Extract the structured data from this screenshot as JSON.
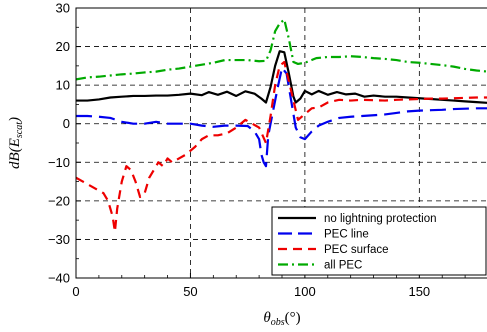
{
  "chart_data": {
    "type": "line",
    "title": "",
    "xlabel": "θ_obs(°)",
    "ylabel": "dB(E_scat)",
    "xlim": [
      0,
      180
    ],
    "ylim": [
      -40,
      30
    ],
    "xticks": [
      0,
      50,
      100,
      150
    ],
    "yticks": [
      -40,
      -30,
      -20,
      -10,
      0,
      10,
      20,
      30
    ],
    "xtick_labels": [
      "0",
      "50",
      "100",
      "150"
    ],
    "ytick_labels": [
      "−40",
      "−30",
      "−20",
      "−10",
      "0",
      "10",
      "20",
      "30"
    ],
    "grid": true,
    "grid_style": "dashed",
    "legend_position": "bottom-right",
    "series": [
      {
        "name": "no lightning protection",
        "color": "#000000",
        "dash": "solid",
        "width": 2.2,
        "x": [
          0,
          5,
          10,
          15,
          20,
          25,
          30,
          35,
          40,
          45,
          50,
          55,
          58,
          62,
          66,
          70,
          74,
          78,
          81,
          83,
          85,
          87,
          89,
          91,
          93,
          95,
          96,
          98,
          100,
          103,
          106,
          110,
          114,
          118,
          122,
          126,
          130,
          135,
          140,
          145,
          150,
          155,
          160,
          165,
          170,
          175,
          180
        ],
        "y": [
          6,
          6,
          6.3,
          6.8,
          7,
          7.2,
          7.2,
          7.3,
          7.3,
          7.5,
          7.8,
          7.4,
          8.2,
          7.5,
          8.3,
          7.2,
          8.4,
          7.8,
          6.5,
          5.5,
          9.5,
          15,
          18.8,
          18.5,
          13,
          7,
          5.5,
          6.5,
          8.5,
          7.6,
          8.5,
          7.5,
          8.2,
          7.6,
          7.8,
          7,
          7.3,
          7,
          7,
          6.8,
          6.6,
          6.4,
          6.2,
          6,
          5.8,
          5.6,
          5.4
        ]
      },
      {
        "name": "PEC line",
        "color": "#0000ee",
        "dash": "long-dash",
        "width": 2.2,
        "x": [
          0,
          5,
          10,
          15,
          20,
          25,
          30,
          35,
          40,
          45,
          50,
          55,
          60,
          65,
          70,
          75,
          78,
          80,
          81,
          82,
          83,
          84,
          86,
          88,
          90,
          92,
          94,
          96,
          98,
          100,
          103,
          106,
          110,
          115,
          120,
          125,
          130,
          135,
          140,
          145,
          150,
          155,
          160,
          165,
          170,
          175,
          180
        ],
        "y": [
          2,
          2,
          1.8,
          1.5,
          0.5,
          0,
          0,
          0.5,
          0,
          0,
          0,
          -0.5,
          -0.8,
          -0.5,
          -0.5,
          -0.6,
          -2,
          -4,
          -8,
          -10,
          -11,
          -3,
          3,
          9,
          14.5,
          13,
          6,
          -1,
          -3.5,
          -4,
          -2,
          -0.5,
          0.5,
          1.5,
          1.8,
          2,
          2.2,
          2.4,
          2.8,
          3.2,
          3.4,
          3.5,
          3.6,
          3.8,
          3.9,
          4,
          4
        ]
      },
      {
        "name": "PEC surface",
        "color": "#ee0000",
        "dash": "dash",
        "width": 2.2,
        "x": [
          0,
          3,
          6,
          9,
          12,
          14,
          16,
          17,
          18,
          20,
          22,
          24,
          26,
          28,
          30,
          32,
          34,
          36,
          38,
          40,
          42,
          45,
          48,
          52,
          55,
          58,
          62,
          66,
          70,
          74,
          77,
          80,
          83,
          85,
          87,
          89,
          91,
          93,
          95,
          97,
          100,
          103,
          106,
          110,
          115,
          120,
          125,
          130,
          135,
          140,
          145,
          150,
          155,
          160,
          165,
          170,
          175,
          180
        ],
        "y": [
          -14,
          -15,
          -16,
          -17,
          -18,
          -20,
          -24,
          -28,
          -22,
          -15,
          -11,
          -12,
          -15,
          -19,
          -18,
          -14,
          -12,
          -10,
          -11,
          -9,
          -10,
          -9,
          -8,
          -6,
          -4,
          -3,
          -3,
          -2.5,
          -1,
          1,
          0,
          -1,
          -5,
          2,
          10,
          15,
          16,
          11,
          6,
          1,
          2.5,
          4,
          4.2,
          5.5,
          6.2,
          6,
          6.2,
          6.1,
          6,
          6.2,
          6.3,
          6.4,
          6.5,
          6.5,
          6.6,
          6.7,
          6.8,
          6.8
        ]
      },
      {
        "name": "all PEC",
        "color": "#00aa00",
        "dash": "dash-dot",
        "width": 2.2,
        "x": [
          0,
          5,
          10,
          15,
          20,
          25,
          30,
          35,
          40,
          45,
          50,
          55,
          60,
          65,
          70,
          75,
          80,
          83,
          85,
          87,
          89,
          91,
          93,
          95,
          97,
          100,
          105,
          110,
          115,
          120,
          125,
          130,
          135,
          140,
          145,
          150,
          155,
          160,
          165,
          170,
          175,
          180
        ],
        "y": [
          11.5,
          12,
          12.2,
          12.5,
          12.8,
          13,
          13.3,
          13.5,
          14,
          14.3,
          14.8,
          15.3,
          15.8,
          16.5,
          16.5,
          16.5,
          16.2,
          16.3,
          19,
          24,
          26,
          27,
          22,
          16,
          15.5,
          15.8,
          17,
          17.3,
          17.3,
          17.5,
          17.3,
          17,
          16.8,
          16.5,
          16,
          15.8,
          15.5,
          15.2,
          14.8,
          14.2,
          13.8,
          13.5
        ]
      }
    ]
  }
}
